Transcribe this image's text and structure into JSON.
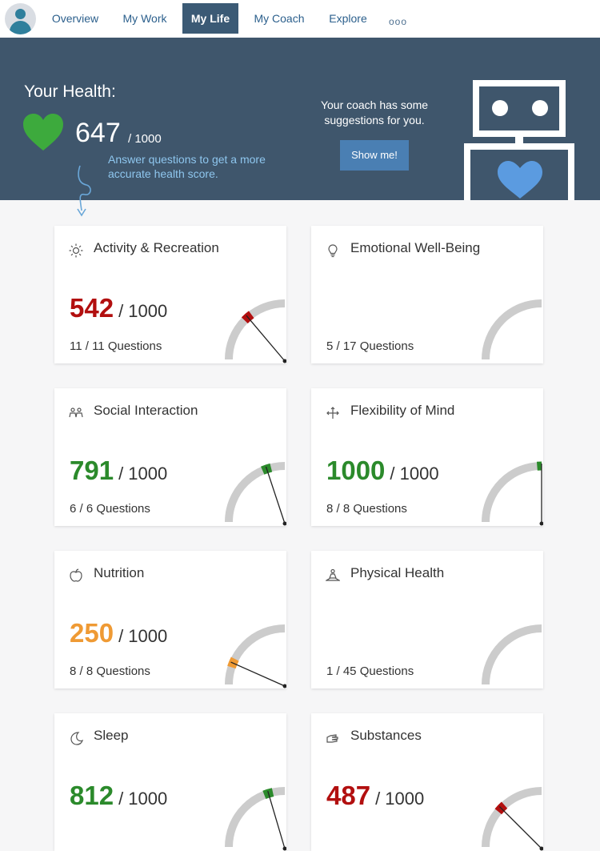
{
  "nav": {
    "tabs": [
      {
        "label": "Overview"
      },
      {
        "label": "My Work"
      },
      {
        "label": "My Life"
      },
      {
        "label": "My Coach"
      },
      {
        "label": "Explore"
      }
    ],
    "more_label": "ooo"
  },
  "hero": {
    "title": "Your Health:",
    "score": "647",
    "score_max": "/ 1000",
    "hint": "Answer questions to get a more accurate health score.",
    "coach_text": "Your coach has some suggestions for you.",
    "show_button": "Show me!"
  },
  "colors": {
    "nav_active": "#3b5a75",
    "hero_bg": "#3f566c",
    "heart_green": "#3daa3d",
    "score_red": "#b20f0f",
    "score_green": "#2b8a2b",
    "score_orange": "#ef9a34",
    "robot_heart": "#5b9be0"
  },
  "cards": [
    {
      "icon": "sun-icon",
      "title": "Activity & Recreation",
      "score": "542",
      "max": "/ 1000",
      "questions": "11 / 11 Questions",
      "value": 542
    },
    {
      "icon": "lightbulb-icon",
      "title": "Emotional Well-Being",
      "score": "",
      "max": "",
      "questions": "5 / 17 Questions",
      "value": null
    },
    {
      "icon": "people-icon",
      "title": "Social Interaction",
      "score": "791",
      "max": "/ 1000",
      "questions": "6 / 6 Questions",
      "value": 791
    },
    {
      "icon": "arrows-icon",
      "title": "Flexibility of Mind",
      "score": "1000",
      "max": "/ 1000",
      "questions": "8 / 8 Questions",
      "value": 1000
    },
    {
      "icon": "apple-icon",
      "title": "Nutrition",
      "score": "250",
      "max": "/ 1000",
      "questions": "8 / 8 Questions",
      "value": 250
    },
    {
      "icon": "meditation-icon",
      "title": "Physical Health",
      "score": "",
      "max": "",
      "questions": "1 / 45 Questions",
      "value": null
    },
    {
      "icon": "moon-icon",
      "title": "Sleep",
      "score": "812",
      "max": "/ 1000",
      "questions": "",
      "value": 812
    },
    {
      "icon": "hand-icon",
      "title": "Substances",
      "score": "487",
      "max": "/ 1000",
      "questions": "",
      "value": 487
    }
  ]
}
